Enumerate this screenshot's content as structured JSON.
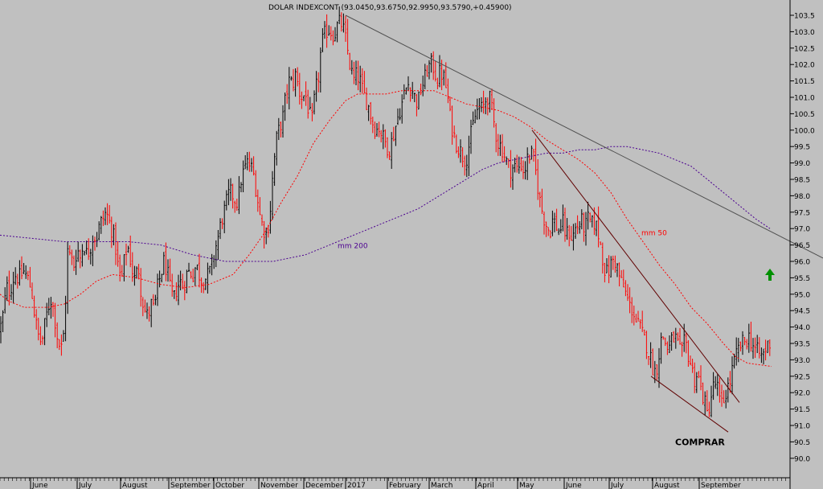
{
  "colors": {
    "background": "#c0c0c0",
    "up_candle": "#000000",
    "down_candle": "#ff0000",
    "ma50": "#ff0000",
    "ma200": "#4b0090",
    "trendline_top": "#505050",
    "channel": "#600000",
    "arrow": "#009000"
  },
  "chart_data": {
    "type": "candlestick",
    "title": "DOLAR INDEXCONT (93.0450,93.6750,92.9950,93.5790,+0.45900)",
    "xlabel": "",
    "ylabel": "",
    "ylim": [
      89.8,
      103.9
    ],
    "yticks": [
      "103.5",
      "103.0",
      "102.5",
      "102.0",
      "101.5",
      "101.0",
      "100.5",
      "100.0",
      "99.5",
      "99.0",
      "98.5",
      "98.0",
      "97.5",
      "97.0",
      "96.5",
      "96.0",
      "95.5",
      "95.0",
      "94.5",
      "94.0",
      "93.5",
      "93.0",
      "92.5",
      "92.0",
      "91.5",
      "91.0",
      "90.5",
      "90.0"
    ],
    "months": [
      "June",
      "July",
      "August",
      "September",
      "October",
      "November",
      "December",
      "2017",
      "February",
      "March",
      "April",
      "May",
      "June",
      "July",
      "August",
      "September"
    ],
    "close_path": [
      [
        0,
        93.9
      ],
      [
        4,
        94.4
      ],
      [
        8,
        95.2
      ],
      [
        12,
        95.1
      ],
      [
        18,
        95.6
      ],
      [
        24,
        95.5
      ],
      [
        30,
        95.7
      ],
      [
        36,
        95.4
      ],
      [
        40,
        95.0
      ],
      [
        44,
        94.2
      ],
      [
        48,
        93.7
      ],
      [
        52,
        93.5
      ],
      [
        56,
        94.1
      ],
      [
        60,
        94.6
      ],
      [
        64,
        94.9
      ],
      [
        68,
        94.3
      ],
      [
        72,
        93.6
      ],
      [
        76,
        93.3
      ],
      [
        80,
        93.9
      ],
      [
        84,
        96.3
      ],
      [
        88,
        96.1
      ],
      [
        92,
        95.9
      ],
      [
        96,
        96.4
      ],
      [
        100,
        96.1
      ],
      [
        104,
        96.6
      ],
      [
        108,
        96.2
      ],
      [
        112,
        96.4
      ],
      [
        116,
        96.8
      ],
      [
        120,
        96.7
      ],
      [
        124,
        97.1
      ],
      [
        128,
        97.3
      ],
      [
        132,
        97.5
      ],
      [
        136,
        97.2
      ],
      [
        140,
        96.9
      ],
      [
        144,
        96.4
      ],
      [
        148,
        95.6
      ],
      [
        152,
        95.5
      ],
      [
        156,
        96.3
      ],
      [
        160,
        96.4
      ],
      [
        164,
        95.8
      ],
      [
        168,
        95.4
      ],
      [
        172,
        95.9
      ],
      [
        176,
        95.0
      ],
      [
        180,
        94.5
      ],
      [
        184,
        94.3
      ],
      [
        188,
        94.7
      ],
      [
        192,
        94.5
      ],
      [
        196,
        95.2
      ],
      [
        200,
        95.6
      ],
      [
        204,
        96.0
      ],
      [
        208,
        95.7
      ],
      [
        212,
        95.1
      ],
      [
        216,
        94.8
      ],
      [
        220,
        95.2
      ],
      [
        224,
        95.4
      ],
      [
        228,
        95.2
      ],
      [
        232,
        95.6
      ],
      [
        236,
        95.7
      ],
      [
        240,
        95.6
      ],
      [
        244,
        95.9
      ],
      [
        248,
        95.6
      ],
      [
        252,
        95.4
      ],
      [
        256,
        95.5
      ],
      [
        260,
        95.6
      ],
      [
        264,
        95.9
      ],
      [
        268,
        96.4
      ],
      [
        272,
        96.8
      ],
      [
        276,
        97.3
      ],
      [
        280,
        97.6
      ],
      [
        284,
        98.0
      ],
      [
        288,
        98.1
      ],
      [
        292,
        97.9
      ],
      [
        296,
        97.8
      ],
      [
        300,
        98.5
      ],
      [
        304,
        98.8
      ],
      [
        308,
        99.0
      ],
      [
        312,
        98.9
      ],
      [
        316,
        98.6
      ],
      [
        320,
        98.0
      ],
      [
        324,
        97.3
      ],
      [
        328,
        97.0
      ],
      [
        332,
        96.8
      ],
      [
        336,
        97.5
      ],
      [
        340,
        98.8
      ],
      [
        344,
        99.7
      ],
      [
        348,
        100.1
      ],
      [
        352,
        100.4
      ],
      [
        356,
        101.1
      ],
      [
        360,
        101.5
      ],
      [
        364,
        101.4
      ],
      [
        368,
        101.7
      ],
      [
        372,
        101.2
      ],
      [
        376,
        101.0
      ],
      [
        380,
        101.1
      ],
      [
        384,
        100.6
      ],
      [
        388,
        100.2
      ],
      [
        392,
        101.1
      ],
      [
        396,
        101.6
      ],
      [
        400,
        102.6
      ],
      [
        404,
        102.9
      ],
      [
        408,
        103.1
      ],
      [
        412,
        103.0
      ],
      [
        416,
        102.9
      ],
      [
        420,
        103.2
      ],
      [
        424,
        103.3
      ],
      [
        428,
        103.0
      ],
      [
        432,
        102.5
      ],
      [
        436,
        101.9
      ],
      [
        440,
        101.5
      ],
      [
        444,
        101.7
      ],
      [
        448,
        101.5
      ],
      [
        452,
        101.1
      ],
      [
        456,
        100.9
      ],
      [
        460,
        100.6
      ],
      [
        464,
        100.2
      ],
      [
        468,
        100.0
      ],
      [
        472,
        100.1
      ],
      [
        476,
        99.8
      ],
      [
        480,
        99.6
      ],
      [
        484,
        99.4
      ],
      [
        488,
        99.7
      ],
      [
        492,
        100.1
      ],
      [
        496,
        100.5
      ],
      [
        500,
        100.8
      ],
      [
        504,
        101.2
      ],
      [
        508,
        101.4
      ],
      [
        512,
        101.3
      ],
      [
        516,
        101.0
      ],
      [
        520,
        100.8
      ],
      [
        524,
        101.3
      ],
      [
        528,
        101.5
      ],
      [
        532,
        101.9
      ],
      [
        536,
        102.0
      ],
      [
        540,
        101.9
      ],
      [
        544,
        101.5
      ],
      [
        548,
        101.8
      ],
      [
        552,
        101.6
      ],
      [
        556,
        101.2
      ],
      [
        560,
        100.4
      ],
      [
        564,
        99.9
      ],
      [
        568,
        99.6
      ],
      [
        572,
        99.4
      ],
      [
        576,
        99.2
      ],
      [
        580,
        99.1
      ],
      [
        584,
        99.6
      ],
      [
        588,
        100.1
      ],
      [
        592,
        100.5
      ],
      [
        596,
        100.7
      ],
      [
        600,
        100.6
      ],
      [
        604,
        100.9
      ],
      [
        608,
        101.1
      ],
      [
        612,
        100.6
      ],
      [
        616,
        100.0
      ],
      [
        620,
        99.6
      ],
      [
        624,
        99.5
      ],
      [
        628,
        99.2
      ],
      [
        632,
        98.9
      ],
      [
        636,
        98.8
      ],
      [
        640,
        98.9
      ],
      [
        644,
        98.8
      ],
      [
        648,
        99.0
      ],
      [
        652,
        98.7
      ],
      [
        656,
        99.1
      ],
      [
        660,
        99.3
      ],
      [
        664,
        99.1
      ],
      [
        668,
        98.5
      ],
      [
        672,
        97.8
      ],
      [
        676,
        97.4
      ],
      [
        680,
        97.1
      ],
      [
        684,
        96.9
      ],
      [
        688,
        97.3
      ],
      [
        692,
        97.1
      ],
      [
        696,
        96.9
      ],
      [
        700,
        97.2
      ],
      [
        704,
        96.8
      ],
      [
        708,
        96.9
      ],
      [
        712,
        96.7
      ],
      [
        716,
        97.0
      ],
      [
        720,
        97.1
      ],
      [
        724,
        97.2
      ],
      [
        728,
        97.0
      ],
      [
        732,
        97.3
      ],
      [
        736,
        97.1
      ],
      [
        740,
        97.2
      ],
      [
        744,
        96.9
      ],
      [
        748,
        96.4
      ],
      [
        752,
        95.8
      ],
      [
        756,
        95.6
      ],
      [
        760,
        95.9
      ],
      [
        764,
        96.1
      ],
      [
        768,
        95.8
      ],
      [
        772,
        95.4
      ],
      [
        776,
        95.2
      ],
      [
        780,
        94.9
      ],
      [
        784,
        94.6
      ],
      [
        788,
        94.5
      ],
      [
        792,
        94.1
      ],
      [
        796,
        94.0
      ],
      [
        800,
        93.7
      ],
      [
        804,
        93.5
      ],
      [
        808,
        93.2
      ],
      [
        812,
        92.8
      ],
      [
        816,
        92.6
      ],
      [
        820,
        93.2
      ],
      [
        824,
        93.8
      ],
      [
        828,
        93.5
      ],
      [
        832,
        93.3
      ],
      [
        836,
        93.6
      ],
      [
        840,
        93.7
      ],
      [
        844,
        93.4
      ],
      [
        848,
        93.1
      ],
      [
        852,
        93.6
      ],
      [
        856,
        93.2
      ],
      [
        860,
        92.8
      ],
      [
        864,
        92.4
      ],
      [
        868,
        92.6
      ],
      [
        872,
        92.1
      ],
      [
        876,
        91.8
      ],
      [
        880,
        91.3
      ],
      [
        884,
        91.8
      ],
      [
        888,
        92.2
      ],
      [
        892,
        92.3
      ],
      [
        896,
        91.6
      ],
      [
        900,
        91.7
      ],
      [
        904,
        92.1
      ],
      [
        908,
        92.3
      ],
      [
        912,
        92.8
      ],
      [
        916,
        93.1
      ],
      [
        920,
        93.4
      ],
      [
        924,
        93.5
      ],
      [
        928,
        93.6
      ],
      [
        932,
        93.7
      ],
      [
        936,
        93.5
      ],
      [
        940,
        93.3
      ],
      [
        944,
        93.2
      ],
      [
        948,
        93.1
      ],
      [
        952,
        93.3
      ],
      [
        956,
        93.5
      ],
      [
        960,
        93.58
      ]
    ],
    "ma50_path": [
      [
        0,
        95.0
      ],
      [
        10,
        94.8
      ],
      [
        30,
        94.6
      ],
      [
        60,
        94.6
      ],
      [
        80,
        94.7
      ],
      [
        100,
        95.0
      ],
      [
        120,
        95.4
      ],
      [
        140,
        95.6
      ],
      [
        170,
        95.5
      ],
      [
        200,
        95.3
      ],
      [
        230,
        95.2
      ],
      [
        260,
        95.3
      ],
      [
        290,
        95.6
      ],
      [
        310,
        96.2
      ],
      [
        330,
        96.9
      ],
      [
        350,
        97.8
      ],
      [
        370,
        98.6
      ],
      [
        390,
        99.6
      ],
      [
        410,
        100.3
      ],
      [
        430,
        100.9
      ],
      [
        445,
        101.1
      ],
      [
        460,
        101.1
      ],
      [
        480,
        101.1
      ],
      [
        500,
        101.2
      ],
      [
        520,
        101.2
      ],
      [
        540,
        101.2
      ],
      [
        560,
        101.0
      ],
      [
        580,
        100.8
      ],
      [
        600,
        100.7
      ],
      [
        620,
        100.6
      ],
      [
        640,
        100.4
      ],
      [
        660,
        100.1
      ],
      [
        680,
        99.7
      ],
      [
        700,
        99.4
      ],
      [
        720,
        99.1
      ],
      [
        740,
        98.7
      ],
      [
        760,
        98.1
      ],
      [
        780,
        97.3
      ],
      [
        800,
        96.6
      ],
      [
        820,
        95.9
      ],
      [
        840,
        95.3
      ],
      [
        860,
        94.6
      ],
      [
        880,
        94.1
      ],
      [
        900,
        93.5
      ],
      [
        915,
        93.1
      ],
      [
        930,
        92.9
      ],
      [
        960,
        92.8
      ]
    ],
    "ma200_path": [
      [
        0,
        96.8
      ],
      [
        40,
        96.7
      ],
      [
        80,
        96.6
      ],
      [
        120,
        96.6
      ],
      [
        160,
        96.6
      ],
      [
        200,
        96.5
      ],
      [
        240,
        96.2
      ],
      [
        280,
        96.0
      ],
      [
        320,
        96.0
      ],
      [
        340,
        96.0
      ],
      [
        360,
        96.1
      ],
      [
        380,
        96.2
      ],
      [
        400,
        96.4
      ],
      [
        420,
        96.6
      ],
      [
        440,
        96.8
      ],
      [
        460,
        97.0
      ],
      [
        480,
        97.2
      ],
      [
        500,
        97.4
      ],
      [
        520,
        97.6
      ],
      [
        540,
        97.9
      ],
      [
        560,
        98.2
      ],
      [
        580,
        98.5
      ],
      [
        600,
        98.8
      ],
      [
        620,
        99.0
      ],
      [
        640,
        99.1
      ],
      [
        660,
        99.2
      ],
      [
        680,
        99.3
      ],
      [
        700,
        99.3
      ],
      [
        720,
        99.4
      ],
      [
        740,
        99.4
      ],
      [
        760,
        99.5
      ],
      [
        780,
        99.5
      ],
      [
        800,
        99.4
      ],
      [
        820,
        99.3
      ],
      [
        840,
        99.1
      ],
      [
        860,
        98.9
      ],
      [
        880,
        98.5
      ],
      [
        900,
        98.1
      ],
      [
        920,
        97.7
      ],
      [
        940,
        97.3
      ],
      [
        958,
        97.0
      ]
    ],
    "trendlines": [
      {
        "name": "resistance",
        "points": [
          [
            430,
            103.5
          ],
          [
            1024,
            96.1
          ]
        ]
      },
      {
        "name": "channel-upper",
        "points": [
          [
            662,
            100.0
          ],
          [
            920,
            91.7
          ]
        ]
      },
      {
        "name": "channel-lower",
        "points": [
          [
            810,
            92.5
          ],
          [
            906,
            90.8
          ]
        ]
      }
    ],
    "annotations": [
      {
        "name": "ma200-label",
        "text": "mm 200",
        "x": 420,
        "y": 96.4
      },
      {
        "name": "ma50-label",
        "text": "mm 50",
        "x": 798,
        "y": 96.8
      },
      {
        "name": "buy-label",
        "text": "COMPRAR",
        "x": 840,
        "y": 90.4
      }
    ],
    "grid": false,
    "legend": "none"
  }
}
